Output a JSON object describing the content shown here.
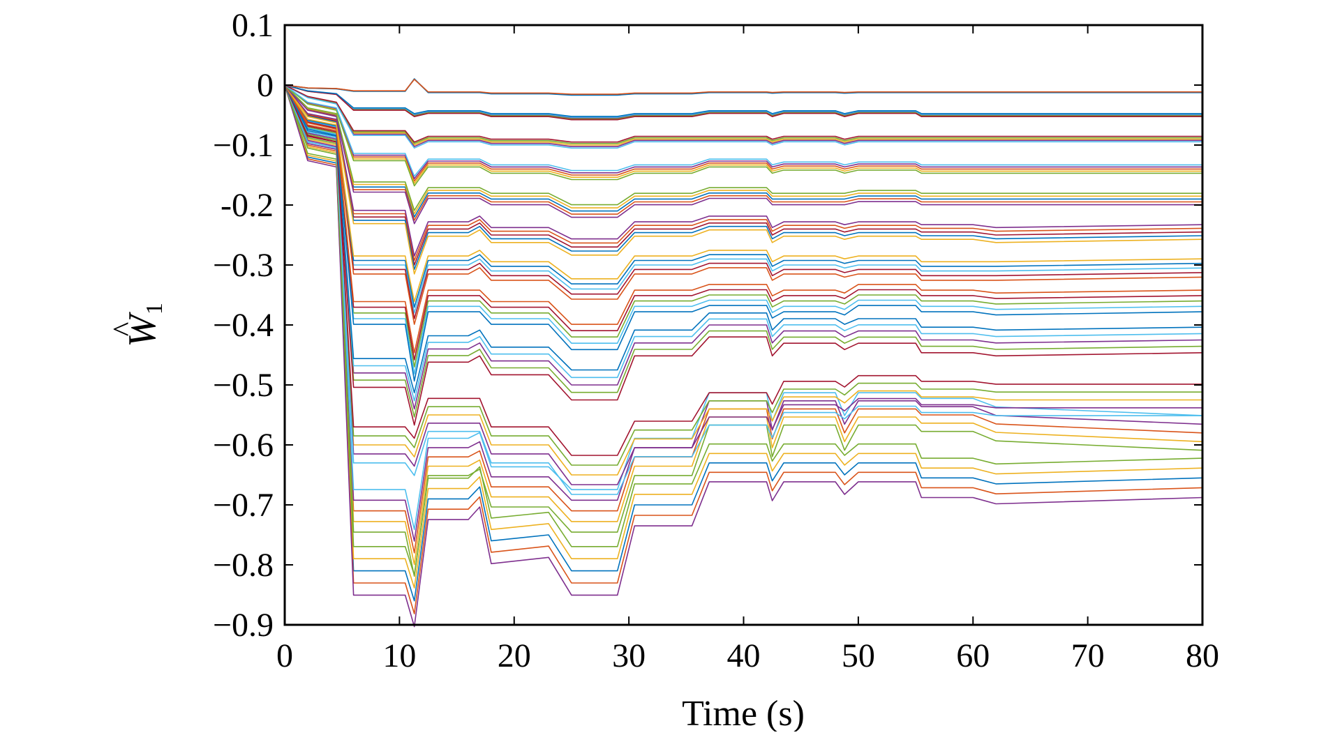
{
  "chart_data": {
    "type": "line",
    "title": "",
    "xlabel": "Time (s)",
    "ylabel": {
      "symbol": "W",
      "accent": "^",
      "subscript": "1"
    },
    "xlim": [
      0,
      80
    ],
    "ylim": [
      -0.9,
      0.1
    ],
    "xticks": [
      0,
      10,
      20,
      30,
      40,
      50,
      60,
      70,
      80
    ],
    "xtick_labels": [
      "0",
      "10",
      "20",
      "30",
      "40",
      "50",
      "60",
      "70",
      "80"
    ],
    "yticks": [
      0.1,
      0,
      -0.1,
      -0.2,
      -0.3,
      -0.4,
      -0.5,
      -0.6,
      -0.7,
      -0.8,
      -0.9
    ],
    "ytick_labels": [
      "0.1",
      "0",
      "−0.1",
      "-0.2",
      "−0.3",
      "−0.4",
      "−0.5",
      "−0.6",
      "−0.7",
      "−0.8",
      "−0.9"
    ],
    "grid": false,
    "legend": "none",
    "palette": [
      "#0072bd",
      "#d95319",
      "#edb120",
      "#7e2f8e",
      "#77ac30",
      "#4dbeee",
      "#a2142f"
    ],
    "x": [
      0,
      2,
      4.5,
      6,
      9,
      10.5,
      11.3,
      12.5,
      14,
      16,
      17,
      18,
      23,
      25,
      29,
      30.5,
      35.5,
      37,
      42,
      42.5,
      43.5,
      48,
      48.8,
      50,
      55,
      55.5,
      60,
      62,
      80
    ],
    "series": [
      {
        "values": [
          0,
          -0.12,
          -0.13,
          -0.81,
          -0.81,
          -0.81,
          -0.86,
          -0.69,
          -0.69,
          -0.69,
          -0.67,
          -0.76,
          -0.75,
          -0.81,
          -0.81,
          -0.7,
          -0.7,
          -0.63,
          -0.63,
          -0.66,
          -0.63,
          -0.63,
          -0.65,
          -0.63,
          -0.63,
          -0.655,
          -0.655,
          -0.665,
          -0.655
        ]
      },
      {
        "values": [
          0,
          -0.1,
          -0.11,
          -0.71,
          -0.71,
          -0.71,
          -0.78,
          -0.62,
          -0.62,
          -0.62,
          -0.61,
          -0.67,
          -0.67,
          -0.71,
          -0.71,
          -0.62,
          -0.62,
          -0.54,
          -0.54,
          -0.59,
          -0.54,
          -0.54,
          -0.58,
          -0.54,
          -0.54,
          -0.55,
          -0.55,
          -0.565,
          -0.58
        ]
      },
      {
        "values": [
          0,
          -0.09,
          -0.1,
          -0.6,
          -0.6,
          -0.6,
          -0.62,
          -0.55,
          -0.55,
          -0.55,
          -0.55,
          -0.6,
          -0.6,
          -0.65,
          -0.65,
          -0.59,
          -0.59,
          -0.54,
          -0.54,
          -0.56,
          -0.52,
          -0.52,
          -0.53,
          -0.51,
          -0.51,
          -0.52,
          -0.52,
          -0.525,
          -0.525
        ]
      },
      {
        "values": [
          0,
          -0.08,
          -0.09,
          -0.48,
          -0.48,
          -0.48,
          -0.54,
          -0.44,
          -0.44,
          -0.44,
          -0.43,
          -0.46,
          -0.46,
          -0.5,
          -0.5,
          -0.43,
          -0.43,
          -0.4,
          -0.4,
          -0.43,
          -0.41,
          -0.41,
          -0.42,
          -0.41,
          -0.41,
          -0.425,
          -0.425,
          -0.43,
          -0.425
        ]
      },
      {
        "values": [
          0,
          -0.07,
          -0.08,
          -0.38,
          -0.38,
          -0.38,
          -0.47,
          -0.36,
          -0.36,
          -0.36,
          -0.36,
          -0.38,
          -0.38,
          -0.42,
          -0.42,
          -0.36,
          -0.36,
          -0.35,
          -0.35,
          -0.37,
          -0.36,
          -0.36,
          -0.365,
          -0.35,
          -0.35,
          -0.36,
          -0.36,
          -0.365,
          -0.36
        ]
      },
      {
        "values": [
          0,
          -0.06,
          -0.07,
          -0.3,
          -0.3,
          -0.3,
          -0.38,
          -0.3,
          -0.3,
          -0.3,
          -0.29,
          -0.31,
          -0.31,
          -0.34,
          -0.34,
          -0.3,
          -0.3,
          -0.29,
          -0.29,
          -0.31,
          -0.3,
          -0.3,
          -0.305,
          -0.3,
          -0.3,
          -0.31,
          -0.31,
          -0.31,
          -0.305
        ]
      },
      {
        "values": [
          0,
          -0.05,
          -0.06,
          -0.22,
          -0.22,
          -0.22,
          -0.3,
          -0.24,
          -0.24,
          -0.24,
          -0.23,
          -0.25,
          -0.25,
          -0.27,
          -0.27,
          -0.24,
          -0.24,
          -0.23,
          -0.23,
          -0.25,
          -0.24,
          -0.24,
          -0.245,
          -0.24,
          -0.24,
          -0.245,
          -0.245,
          -0.25,
          -0.245
        ]
      },
      {
        "values": [
          0,
          -0.04,
          -0.05,
          -0.17,
          -0.17,
          -0.17,
          -0.22,
          -0.18,
          -0.18,
          -0.18,
          -0.18,
          -0.19,
          -0.19,
          -0.21,
          -0.21,
          -0.19,
          -0.19,
          -0.18,
          -0.18,
          -0.19,
          -0.19,
          -0.19,
          -0.19,
          -0.185,
          -0.185,
          -0.19,
          -0.19,
          -0.19,
          -0.19
        ]
      },
      {
        "values": [
          0,
          -0.03,
          -0.04,
          -0.12,
          -0.12,
          -0.12,
          -0.16,
          -0.13,
          -0.13,
          -0.13,
          -0.13,
          -0.14,
          -0.14,
          -0.15,
          -0.15,
          -0.14,
          -0.14,
          -0.13,
          -0.13,
          -0.14,
          -0.135,
          -0.135,
          -0.14,
          -0.135,
          -0.135,
          -0.14,
          -0.14,
          -0.14,
          -0.14
        ]
      },
      {
        "values": [
          0,
          -0.02,
          -0.03,
          -0.08,
          -0.08,
          -0.08,
          -0.1,
          -0.09,
          -0.09,
          -0.09,
          -0.09,
          -0.095,
          -0.095,
          -0.1,
          -0.1,
          -0.09,
          -0.09,
          -0.09,
          -0.09,
          -0.095,
          -0.09,
          -0.09,
          -0.095,
          -0.09,
          -0.09,
          -0.09,
          -0.09,
          -0.09,
          -0.09
        ]
      },
      {
        "values": [
          0,
          -0.01,
          -0.015,
          -0.04,
          -0.04,
          -0.04,
          -0.05,
          -0.045,
          -0.045,
          -0.045,
          -0.045,
          -0.05,
          -0.05,
          -0.055,
          -0.055,
          -0.05,
          -0.05,
          -0.045,
          -0.045,
          -0.05,
          -0.045,
          -0.045,
          -0.05,
          -0.045,
          -0.045,
          -0.05,
          -0.05,
          -0.05,
          -0.05
        ]
      },
      {
        "values": [
          0,
          -0.005,
          -0.006,
          -0.01,
          -0.01,
          -0.01,
          0.01,
          -0.012,
          -0.012,
          -0.012,
          -0.012,
          -0.014,
          -0.014,
          -0.016,
          -0.016,
          -0.014,
          -0.014,
          -0.012,
          -0.012,
          -0.013,
          -0.012,
          -0.012,
          -0.013,
          -0.012,
          -0.012,
          -0.012,
          -0.012,
          -0.012,
          -0.012
        ]
      }
    ]
  }
}
